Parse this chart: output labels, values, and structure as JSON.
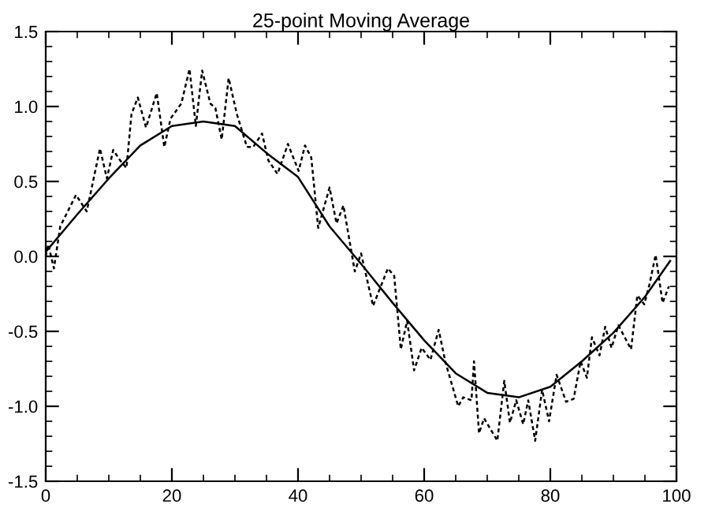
{
  "chart_data": {
    "type": "line",
    "title": "25-point Moving Average",
    "series": [
      {
        "color": "#000000",
        "line_style": "dashed",
        "x": [
          0,
          0.4,
          1.3,
          2.3,
          4.8,
          6.5,
          8.6,
          9.7,
          10.7,
          11.8,
          12.8,
          13.6,
          14.6,
          15.9,
          17.6,
          18.8,
          19.8,
          21.5,
          22.8,
          23.8,
          24.8,
          26.1,
          26.9,
          27.9,
          29,
          30.3,
          31.9,
          32.9,
          34.3,
          35.3,
          36.75,
          38.4,
          40.1,
          41.1,
          42.1,
          43.2,
          45,
          46.1,
          47.2,
          49,
          50,
          51.9,
          54.25,
          55.25,
          56.3,
          57.3,
          58.4,
          59.6,
          61,
          62.3,
          63.4,
          65.4,
          66.2,
          67.5,
          67.9,
          68.7,
          69.5,
          71.6,
          72.7,
          73.6,
          74.6,
          75.7,
          76.5,
          77.6,
          78.7,
          79.8,
          81,
          82.5,
          83.7,
          84.8,
          85.8,
          86.6,
          87.8,
          88.7,
          89.7,
          90.8,
          92.8,
          93.8,
          94.9,
          95.7,
          96.7,
          97.8,
          98.8
        ],
        "values": [
          0.0,
          0.08,
          -0.08,
          0.2,
          0.41,
          0.3,
          0.72,
          0.52,
          0.71,
          0.64,
          0.59,
          0.95,
          1.06,
          0.86,
          1.09,
          0.73,
          0.92,
          1.02,
          1.25,
          0.87,
          1.24,
          1.02,
          0.99,
          0.78,
          1.19,
          0.95,
          0.73,
          0.73,
          0.82,
          0.64,
          0.55,
          0.75,
          0.57,
          0.74,
          0.66,
          0.19,
          0.46,
          0.22,
          0.34,
          -0.1,
          0.02,
          -0.33,
          -0.08,
          -0.13,
          -0.62,
          -0.43,
          -0.76,
          -0.61,
          -0.69,
          -0.49,
          -0.71,
          -1.0,
          -0.94,
          -0.96,
          -0.7,
          -1.18,
          -1.08,
          -1.23,
          -0.83,
          -1.11,
          -0.96,
          -1.12,
          -0.96,
          -1.23,
          -0.89,
          -1.1,
          -0.79,
          -0.97,
          -0.95,
          -0.7,
          -0.81,
          -0.54,
          -0.66,
          -0.47,
          -0.61,
          -0.46,
          -0.62,
          -0.26,
          -0.32,
          -0.19,
          0.01,
          -0.31,
          -0.2
        ]
      },
      {
        "color": "#000000",
        "line_style": "solid",
        "x": [
          0,
          5,
          10,
          15,
          20,
          25,
          30,
          35,
          40,
          45,
          50,
          55,
          60,
          65,
          70,
          75,
          80,
          85,
          90,
          95,
          99
        ],
        "values": [
          0.03,
          0.28,
          0.52,
          0.74,
          0.87,
          0.9,
          0.87,
          0.69,
          0.53,
          0.2,
          -0.05,
          -0.31,
          -0.56,
          -0.78,
          -0.91,
          -0.94,
          -0.87,
          -0.7,
          -0.51,
          -0.27,
          -0.03
        ]
      }
    ],
    "xlim": [
      0,
      100
    ],
    "xticks": [
      0,
      20,
      40,
      60,
      80,
      100
    ],
    "ylim": [
      -1.5,
      1.5
    ],
    "yticks": [
      {
        "value": -1.5,
        "label": "-1.5"
      },
      {
        "value": -1.0,
        "label": "-1.0"
      },
      {
        "value": -0.5,
        "label": "-0.5"
      },
      {
        "value": 0.0,
        "label": "0.0"
      },
      {
        "value": 0.5,
        "label": "0.5"
      },
      {
        "value": 1.0,
        "label": "1.0"
      },
      {
        "value": 1.5,
        "label": "1.5"
      }
    ],
    "grid": false,
    "legend": false,
    "marker": "none"
  }
}
